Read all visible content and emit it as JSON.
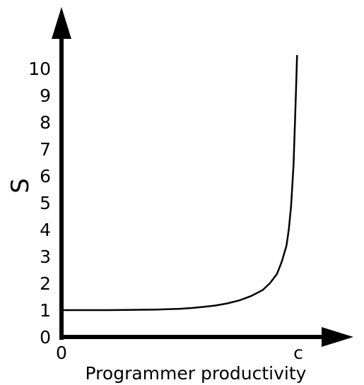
{
  "chart_data": {
    "type": "line",
    "xlabel": "Programmer productivity",
    "ylabel": "S",
    "x_tick_labels": [
      "0",
      "c"
    ],
    "y_tick_labels": [
      "0",
      "1",
      "2",
      "3",
      "4",
      "5",
      "6",
      "7",
      "8",
      "9",
      "10"
    ],
    "ylim": [
      0,
      10
    ],
    "xlim": [
      0,
      1
    ],
    "x_scale_note": "c",
    "grid": false,
    "legend": "none",
    "series": [
      {
        "points": [
          [
            0.0,
            1.0
          ],
          [
            0.1,
            1.0
          ],
          [
            0.2,
            1.0
          ],
          [
            0.3,
            1.01
          ],
          [
            0.4,
            1.02
          ],
          [
            0.5,
            1.05
          ],
          [
            0.55,
            1.08
          ],
          [
            0.6,
            1.12
          ],
          [
            0.65,
            1.17
          ],
          [
            0.7,
            1.25
          ],
          [
            0.75,
            1.36
          ],
          [
            0.8,
            1.52
          ],
          [
            0.85,
            1.75
          ],
          [
            0.88,
            2.0
          ],
          [
            0.91,
            2.35
          ],
          [
            0.93,
            2.8
          ],
          [
            0.95,
            3.4
          ],
          [
            0.96,
            4.0
          ],
          [
            0.97,
            4.9
          ],
          [
            0.98,
            6.4
          ],
          [
            0.99,
            9.0
          ],
          [
            0.995,
            10.5
          ]
        ]
      }
    ],
    "colors": {
      "axis": "#000000",
      "curve": "#000000"
    }
  }
}
